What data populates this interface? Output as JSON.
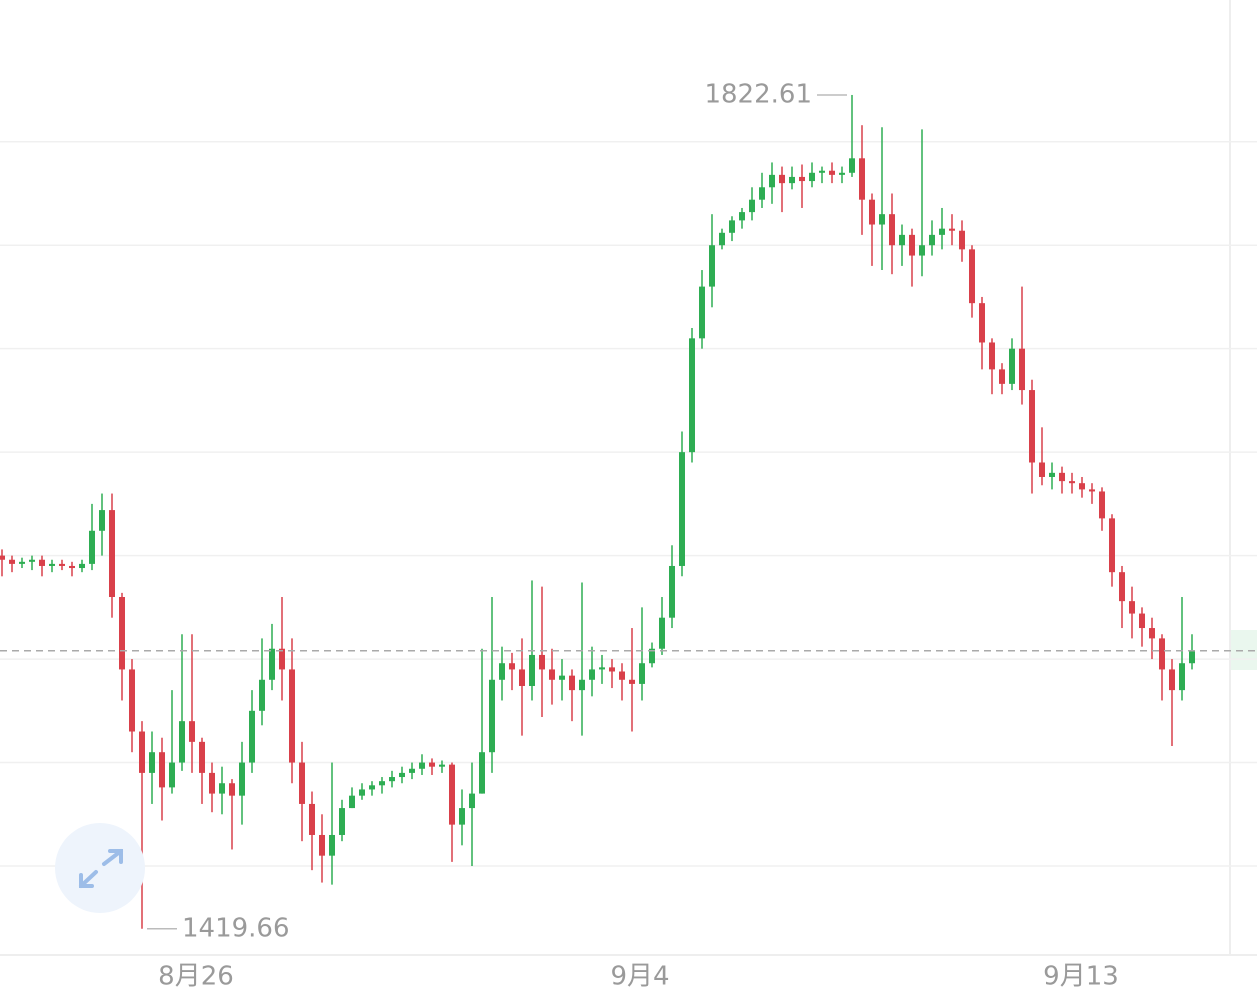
{
  "chart_data": {
    "type": "candlestick",
    "up_color": "#2ead53",
    "down_color": "#d9404a",
    "xlim": [
      -0.2,
      122.8
    ],
    "xticks": [
      {
        "value": 19.4,
        "label": "8月26"
      },
      {
        "value": 63.8,
        "label": "9月4"
      },
      {
        "value": 107.9,
        "label": "9月13"
      }
    ],
    "ylim": [
      1407,
      1868.5
    ],
    "ygrid": [
      1450,
      1500,
      1550,
      1600,
      1650,
      1700,
      1750,
      1800
    ],
    "open": [
      1600,
      1598,
      1596,
      1597,
      1598,
      1595,
      1596,
      1595,
      1594,
      1596,
      1612,
      1622,
      1580,
      1545,
      1515,
      1495,
      1505,
      1488,
      1500,
      1520,
      1510,
      1495,
      1485,
      1490,
      1484,
      1500,
      1525,
      1540,
      1555,
      1545,
      1500,
      1480,
      1465,
      1455,
      1465,
      1478,
      1484,
      1487,
      1489,
      1491,
      1493,
      1495,
      1497,
      1500,
      1498,
      1499,
      1470,
      1478,
      1485,
      1505,
      1540,
      1548,
      1545,
      1537,
      1552,
      1545,
      1540,
      1542,
      1535,
      1540,
      1545,
      1546,
      1544,
      1540,
      1538,
      1548,
      1555,
      1570,
      1595,
      1650,
      1705,
      1730,
      1750,
      1756,
      1762,
      1766,
      1772,
      1778,
      1784,
      1780,
      1783,
      1781,
      1785,
      1786,
      1784,
      1785,
      1792,
      1772,
      1760,
      1765,
      1750,
      1755,
      1745,
      1750,
      1755,
      1758,
      1757,
      1748,
      1722,
      1703,
      1690,
      1683,
      1700,
      1680,
      1645,
      1638,
      1640,
      1636,
      1635,
      1632,
      1631,
      1618,
      1592,
      1578,
      1572,
      1565,
      1560,
      1545,
      1535,
      1548
    ],
    "high": [
      1603,
      1600,
      1599,
      1600,
      1600,
      1598,
      1598,
      1597,
      1598,
      1625,
      1630,
      1630,
      1582,
      1550,
      1520,
      1515,
      1512,
      1535,
      1562,
      1562,
      1512,
      1500,
      1498,
      1492,
      1510,
      1535,
      1560,
      1567,
      1580,
      1560,
      1510,
      1486,
      1475,
      1500,
      1482,
      1488,
      1490,
      1491,
      1493,
      1496,
      1498,
      1500,
      1504,
      1502,
      1501,
      1500,
      1487,
      1500,
      1555,
      1580,
      1556,
      1553,
      1560,
      1588,
      1585,
      1555,
      1550,
      1545,
      1587,
      1556,
      1552,
      1550,
      1548,
      1565,
      1575,
      1558,
      1580,
      1605,
      1660,
      1710,
      1738,
      1765,
      1758,
      1764,
      1768,
      1778,
      1785,
      1790,
      1788,
      1788,
      1789,
      1790,
      1788,
      1790,
      1788,
      1822.61,
      1808,
      1775,
      1807,
      1775,
      1760,
      1758,
      1806,
      1762,
      1768,
      1765,
      1762,
      1750,
      1725,
      1705,
      1693,
      1705,
      1730,
      1685,
      1662,
      1645,
      1643,
      1640,
      1638,
      1635,
      1633,
      1620,
      1595,
      1585,
      1575,
      1570,
      1562,
      1550,
      1580,
      1562
    ],
    "low": [
      1590,
      1592,
      1594,
      1593,
      1590,
      1592,
      1593,
      1590,
      1592,
      1593,
      1600,
      1570,
      1530,
      1505,
      1419.66,
      1480,
      1472,
      1485,
      1496,
      1495,
      1480,
      1476,
      1475,
      1458,
      1470,
      1495,
      1518,
      1535,
      1530,
      1490,
      1462,
      1448,
      1442,
      1441,
      1462,
      1478,
      1482,
      1484,
      1485,
      1488,
      1490,
      1492,
      1494,
      1494,
      1495,
      1452,
      1460,
      1450,
      1485,
      1495,
      1530,
      1535,
      1513,
      1530,
      1522,
      1528,
      1530,
      1520,
      1513,
      1532,
      1538,
      1536,
      1530,
      1515,
      1530,
      1546,
      1552,
      1565,
      1590,
      1645,
      1700,
      1720,
      1748,
      1752,
      1758,
      1762,
      1768,
      1770,
      1766,
      1777,
      1768,
      1778,
      1780,
      1780,
      1780,
      1783,
      1755,
      1740,
      1738,
      1736,
      1740,
      1730,
      1735,
      1745,
      1748,
      1750,
      1742,
      1715,
      1690,
      1678,
      1678,
      1680,
      1673,
      1630,
      1634,
      1632,
      1630,
      1630,
      1628,
      1625,
      1612,
      1585,
      1565,
      1560,
      1556,
      1550,
      1530,
      1508,
      1530,
      1545
    ],
    "close": [
      1598,
      1596,
      1597,
      1598,
      1595,
      1596,
      1595,
      1594,
      1596,
      1612,
      1622,
      1580,
      1545,
      1515,
      1495,
      1505,
      1488,
      1500,
      1520,
      1510,
      1495,
      1485,
      1490,
      1484,
      1500,
      1525,
      1540,
      1555,
      1545,
      1500,
      1480,
      1465,
      1455,
      1465,
      1478,
      1484,
      1487,
      1489,
      1491,
      1493,
      1495,
      1497,
      1500,
      1498,
      1499,
      1470,
      1478,
      1485,
      1505,
      1540,
      1548,
      1545,
      1537,
      1552,
      1545,
      1540,
      1542,
      1535,
      1540,
      1545,
      1546,
      1544,
      1540,
      1538,
      1548,
      1555,
      1570,
      1595,
      1650,
      1705,
      1730,
      1750,
      1756,
      1762,
      1766,
      1772,
      1778,
      1784,
      1780,
      1783,
      1781,
      1785,
      1786,
      1784,
      1785,
      1792,
      1772,
      1760,
      1765,
      1750,
      1755,
      1745,
      1750,
      1755,
      1758,
      1757,
      1748,
      1722,
      1703,
      1690,
      1683,
      1700,
      1680,
      1645,
      1638,
      1640,
      1636,
      1635,
      1632,
      1631,
      1618,
      1592,
      1578,
      1572,
      1565,
      1560,
      1545,
      1535,
      1548,
      1554
    ]
  }
}
